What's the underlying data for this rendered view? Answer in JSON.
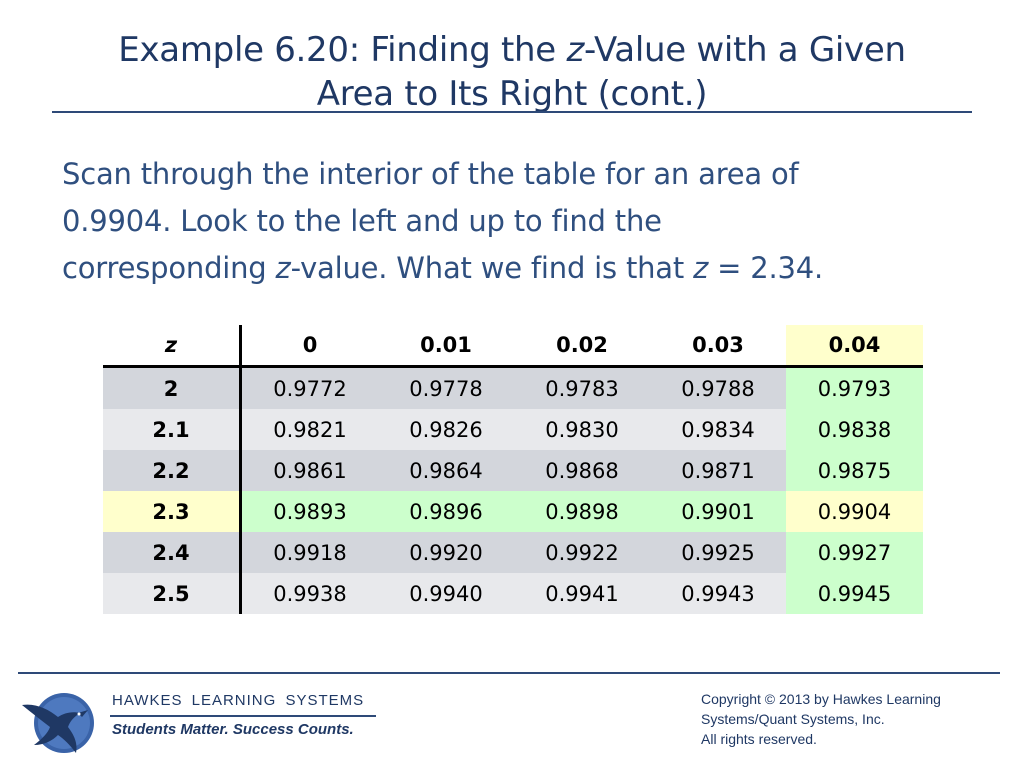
{
  "title": {
    "line1_pre": "Example 6.20: Finding the ",
    "line1_ital": "z",
    "line1_post": "-Value with a Given",
    "line2": "Area to Its Right (cont.)"
  },
  "body": {
    "line1": "Scan through the interior of the table for an area of",
    "line2": "0.9904. Look to the left and up to find the",
    "line3_pre": "corresponding ",
    "line3_ital1": "z",
    "line3_mid": "-value. What we find is that ",
    "line3_ital2": "z",
    "line3_post": " = 2.34."
  },
  "table": {
    "z_header": "z",
    "col_headers": [
      "0",
      "0.01",
      "0.02",
      "0.03",
      "0.04"
    ],
    "rows": [
      {
        "z": "2",
        "values": [
          "0.9772",
          "0.9778",
          "0.9783",
          "0.9788",
          "0.9793"
        ]
      },
      {
        "z": "2.1",
        "values": [
          "0.9821",
          "0.9826",
          "0.9830",
          "0.9834",
          "0.9838"
        ]
      },
      {
        "z": "2.2",
        "values": [
          "0.9861",
          "0.9864",
          "0.9868",
          "0.9871",
          "0.9875"
        ]
      },
      {
        "z": "2.3",
        "values": [
          "0.9893",
          "0.9896",
          "0.9898",
          "0.9901",
          "0.9904"
        ]
      },
      {
        "z": "2.4",
        "values": [
          "0.9918",
          "0.9920",
          "0.9922",
          "0.9925",
          "0.9927"
        ]
      },
      {
        "z": "2.5",
        "values": [
          "0.9938",
          "0.9940",
          "0.9941",
          "0.9943",
          "0.9945"
        ]
      }
    ],
    "colors": {
      "highlight_yellow": "#ffffcc",
      "highlight_green": "#ccffcc",
      "row_gray_dark": "#d3d6dc",
      "row_gray_light": "#e8e9ec"
    }
  },
  "footer": {
    "brand": "HAWKES LEARNING SYSTEMS",
    "tagline": "Students Matter. Success Counts.",
    "copyright_line1": "Copyright © 2013 by Hawkes Learning",
    "copyright_line2": "Systems/Quant Systems, Inc.",
    "copyright_line3": "All rights reserved.",
    "logo_icon": "hawk-logo-icon"
  },
  "colors": {
    "title": "#1f3864",
    "body_text": "#2f4f7f",
    "rule": "#2e4a78"
  }
}
